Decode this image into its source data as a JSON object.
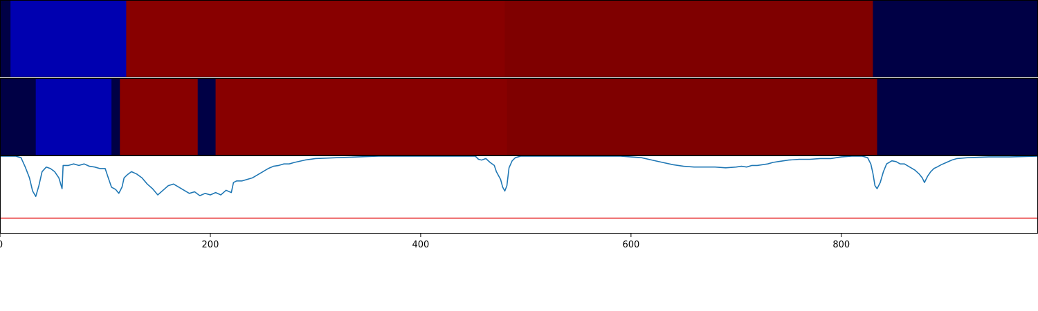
{
  "chart_data": {
    "type": "heatmap",
    "xlim": [
      0,
      987
    ],
    "x_ticks": [
      "0",
      "200",
      "400",
      "600",
      "800"
    ],
    "x_tick_values": [
      0,
      200,
      400,
      600,
      800
    ],
    "segments_row_1": [
      {
        "start": 0,
        "end": 10,
        "color": "#000045"
      },
      {
        "start": 10,
        "end": 120,
        "color": "#0000b0"
      },
      {
        "start": 120,
        "end": 480,
        "color": "#880000"
      },
      {
        "start": 480,
        "end": 830,
        "color": "#7f0000"
      },
      {
        "start": 830,
        "end": 987,
        "color": "#000045"
      }
    ],
    "segments_row_2": [
      {
        "start": 0,
        "end": 34,
        "color": "#000045"
      },
      {
        "start": 34,
        "end": 106,
        "color": "#0000b0"
      },
      {
        "start": 106,
        "end": 114,
        "color": "#000045"
      },
      {
        "start": 114,
        "end": 188,
        "color": "#880000"
      },
      {
        "start": 188,
        "end": 205,
        "color": "#000045"
      },
      {
        "start": 205,
        "end": 482,
        "color": "#880000"
      },
      {
        "start": 482,
        "end": 834,
        "color": "#7f0000"
      },
      {
        "start": 834,
        "end": 987,
        "color": "#000045"
      }
    ],
    "line_series": {
      "color": "#1f77b4",
      "ylim": [
        0,
        1
      ],
      "points": [
        [
          0,
          1.0
        ],
        [
          15,
          1.0
        ],
        [
          20,
          0.98
        ],
        [
          24,
          0.86
        ],
        [
          28,
          0.72
        ],
        [
          31,
          0.55
        ],
        [
          34,
          0.48
        ],
        [
          37,
          0.62
        ],
        [
          40,
          0.8
        ],
        [
          44,
          0.86
        ],
        [
          48,
          0.84
        ],
        [
          52,
          0.8
        ],
        [
          56,
          0.72
        ],
        [
          59,
          0.58
        ],
        [
          60,
          0.88
        ],
        [
          65,
          0.88
        ],
        [
          70,
          0.9
        ],
        [
          75,
          0.88
        ],
        [
          80,
          0.9
        ],
        [
          85,
          0.87
        ],
        [
          90,
          0.86
        ],
        [
          95,
          0.84
        ],
        [
          100,
          0.84
        ],
        [
          103,
          0.72
        ],
        [
          106,
          0.6
        ],
        [
          110,
          0.57
        ],
        [
          113,
          0.52
        ],
        [
          116,
          0.6
        ],
        [
          118,
          0.72
        ],
        [
          121,
          0.76
        ],
        [
          125,
          0.8
        ],
        [
          130,
          0.77
        ],
        [
          135,
          0.72
        ],
        [
          140,
          0.64
        ],
        [
          145,
          0.58
        ],
        [
          150,
          0.5
        ],
        [
          155,
          0.56
        ],
        [
          160,
          0.62
        ],
        [
          165,
          0.64
        ],
        [
          170,
          0.6
        ],
        [
          175,
          0.56
        ],
        [
          180,
          0.52
        ],
        [
          185,
          0.54
        ],
        [
          190,
          0.49
        ],
        [
          195,
          0.52
        ],
        [
          200,
          0.5
        ],
        [
          205,
          0.53
        ],
        [
          210,
          0.5
        ],
        [
          215,
          0.56
        ],
        [
          220,
          0.53
        ],
        [
          222,
          0.66
        ],
        [
          225,
          0.68
        ],
        [
          230,
          0.68
        ],
        [
          235,
          0.7
        ],
        [
          240,
          0.72
        ],
        [
          245,
          0.76
        ],
        [
          250,
          0.8
        ],
        [
          255,
          0.84
        ],
        [
          260,
          0.87
        ],
        [
          265,
          0.88
        ],
        [
          270,
          0.9
        ],
        [
          275,
          0.9
        ],
        [
          280,
          0.92
        ],
        [
          290,
          0.95
        ],
        [
          300,
          0.97
        ],
        [
          320,
          0.98
        ],
        [
          340,
          0.99
        ],
        [
          360,
          1.0
        ],
        [
          400,
          1.0
        ],
        [
          440,
          1.0
        ],
        [
          452,
          1.0
        ],
        [
          455,
          0.96
        ],
        [
          458,
          0.95
        ],
        [
          462,
          0.97
        ],
        [
          466,
          0.92
        ],
        [
          470,
          0.88
        ],
        [
          472,
          0.8
        ],
        [
          476,
          0.7
        ],
        [
          478,
          0.6
        ],
        [
          480,
          0.55
        ],
        [
          482,
          0.62
        ],
        [
          484,
          0.85
        ],
        [
          487,
          0.94
        ],
        [
          490,
          0.98
        ],
        [
          495,
          1.0
        ],
        [
          520,
          1.0
        ],
        [
          560,
          1.0
        ],
        [
          590,
          1.0
        ],
        [
          600,
          0.99
        ],
        [
          610,
          0.98
        ],
        [
          620,
          0.95
        ],
        [
          630,
          0.92
        ],
        [
          640,
          0.89
        ],
        [
          650,
          0.87
        ],
        [
          660,
          0.86
        ],
        [
          670,
          0.86
        ],
        [
          680,
          0.86
        ],
        [
          690,
          0.85
        ],
        [
          700,
          0.86
        ],
        [
          705,
          0.87
        ],
        [
          710,
          0.86
        ],
        [
          715,
          0.88
        ],
        [
          720,
          0.88
        ],
        [
          725,
          0.89
        ],
        [
          730,
          0.9
        ],
        [
          735,
          0.92
        ],
        [
          740,
          0.93
        ],
        [
          745,
          0.94
        ],
        [
          750,
          0.95
        ],
        [
          760,
          0.96
        ],
        [
          770,
          0.96
        ],
        [
          780,
          0.97
        ],
        [
          790,
          0.97
        ],
        [
          800,
          0.99
        ],
        [
          810,
          1.0
        ],
        [
          820,
          1.0
        ],
        [
          825,
          0.98
        ],
        [
          828,
          0.9
        ],
        [
          830,
          0.78
        ],
        [
          832,
          0.62
        ],
        [
          834,
          0.58
        ],
        [
          837,
          0.66
        ],
        [
          840,
          0.8
        ],
        [
          843,
          0.9
        ],
        [
          848,
          0.94
        ],
        [
          852,
          0.93
        ],
        [
          856,
          0.9
        ],
        [
          860,
          0.9
        ],
        [
          865,
          0.86
        ],
        [
          870,
          0.82
        ],
        [
          874,
          0.77
        ],
        [
          877,
          0.72
        ],
        [
          879,
          0.66
        ],
        [
          882,
          0.74
        ],
        [
          885,
          0.8
        ],
        [
          888,
          0.84
        ],
        [
          891,
          0.86
        ],
        [
          895,
          0.89
        ],
        [
          900,
          0.92
        ],
        [
          905,
          0.95
        ],
        [
          910,
          0.97
        ],
        [
          920,
          0.98
        ],
        [
          940,
          0.99
        ],
        [
          960,
          0.99
        ],
        [
          987,
          1.0
        ]
      ]
    },
    "threshold_line": {
      "value": 0.2,
      "color": "#e41a1c"
    }
  }
}
